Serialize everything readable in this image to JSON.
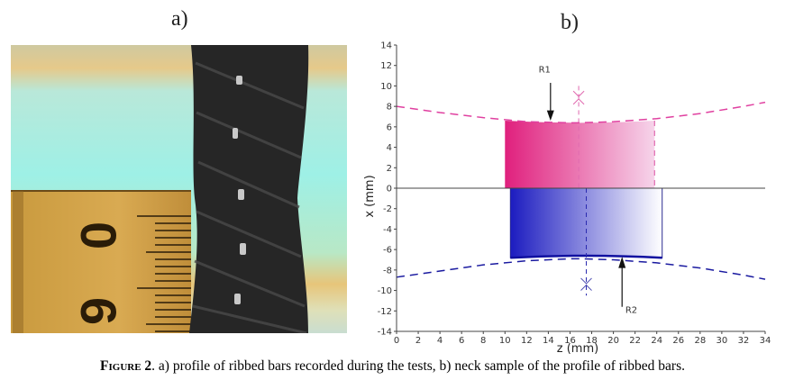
{
  "panels": {
    "a_label": "a)",
    "b_label": "b)"
  },
  "photo": {
    "ruler_digits": [
      "6",
      "0"
    ]
  },
  "chart_data": {
    "type": "line",
    "xlabel": "z (mm)",
    "ylabel": "x (mm)",
    "xlim": [
      0,
      34
    ],
    "ylim": [
      -14,
      14
    ],
    "x_ticks": [
      0,
      2,
      4,
      6,
      8,
      10,
      12,
      14,
      16,
      18,
      20,
      22,
      24,
      26,
      28,
      30,
      32,
      34
    ],
    "y_ticks": [
      14,
      12,
      10,
      8,
      6,
      4,
      2,
      0,
      -2,
      -4,
      -6,
      -8,
      -10,
      -12,
      -14
    ],
    "annotations": [
      "R1",
      "R2"
    ],
    "series": [
      {
        "color": "#e040a0",
        "style": "dashed",
        "x": [
          0,
          4,
          8,
          12,
          16,
          17,
          20,
          24,
          28,
          32,
          34
        ],
        "y": [
          8.0,
          7.4,
          6.9,
          6.5,
          6.4,
          6.4,
          6.5,
          6.8,
          7.3,
          8.0,
          8.4
        ]
      },
      {
        "color": "#1a1aa0",
        "style": "dashed",
        "x": [
          0,
          4,
          8,
          12,
          16,
          17,
          20,
          24,
          28,
          32,
          34
        ],
        "y": [
          -8.7,
          -8.1,
          -7.5,
          -7.1,
          -6.9,
          -6.9,
          -7.0,
          -7.3,
          -7.8,
          -8.5,
          -8.9
        ]
      }
    ]
  },
  "caption": {
    "figure_label": "Figure 2",
    "text": ". a) profile of ribbed bars recorded during the tests, b) neck sample of the profile of ribbed bars."
  }
}
